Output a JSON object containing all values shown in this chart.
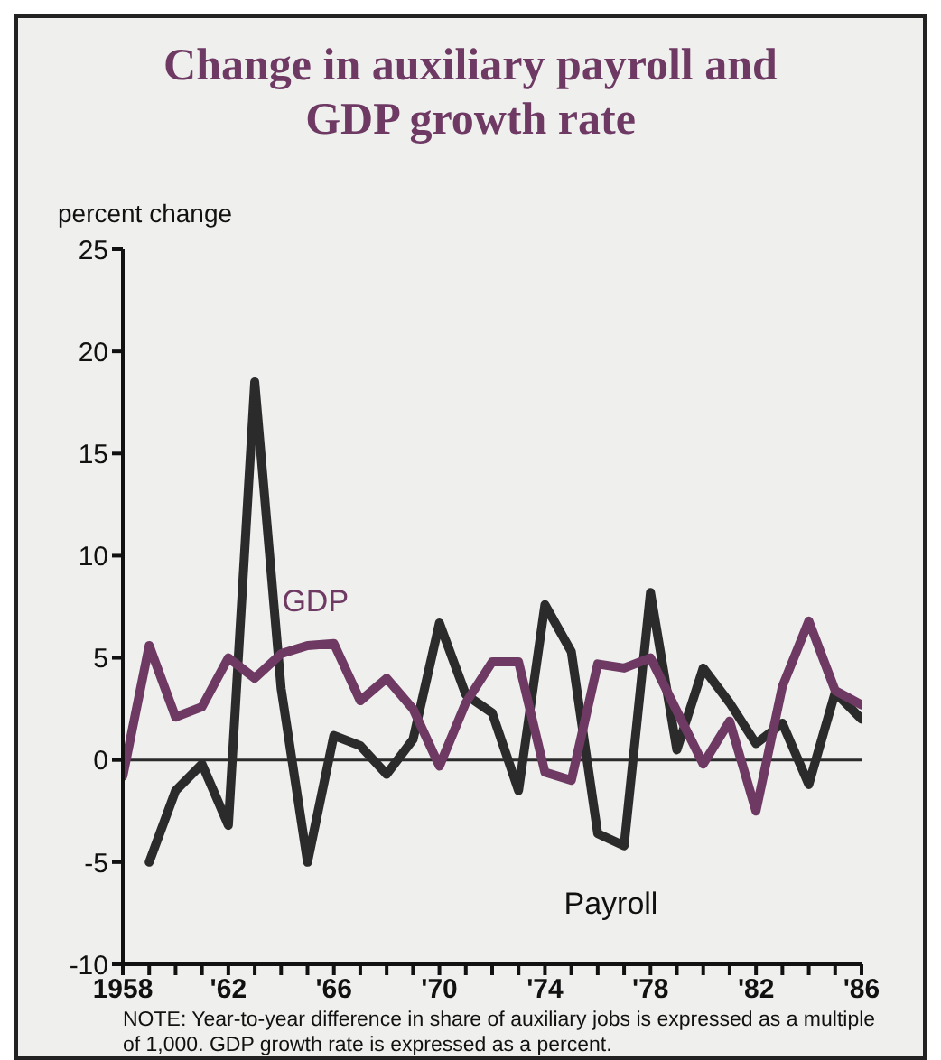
{
  "chart_data": {
    "type": "line",
    "title": "Change in auxiliary payroll and GDP growth rate",
    "ylabel": "percent change",
    "x": [
      1958,
      1959,
      1960,
      1961,
      1962,
      1963,
      1964,
      1965,
      1966,
      1967,
      1968,
      1969,
      1970,
      1971,
      1972,
      1973,
      1974,
      1975,
      1976,
      1977,
      1978,
      1979,
      1980,
      1981,
      1982,
      1983,
      1984,
      1985,
      1986
    ],
    "series": [
      {
        "name": "Payroll",
        "color": "#2b2b2b",
        "values": [
          null,
          -5,
          -1.5,
          -0.2,
          -3.2,
          18.5,
          3.5,
          -5,
          1.2,
          0.7,
          -0.7,
          1,
          6.7,
          3.2,
          2.3,
          -1.5,
          7.6,
          5.3,
          -3.6,
          -4.2,
          8.2,
          0.5,
          4.5,
          2.8,
          0.8,
          1.8,
          -1.2,
          3.3,
          2
        ]
      },
      {
        "name": "GDP",
        "color": "#6e3a64",
        "values": [
          -0.8,
          5.6,
          2.1,
          2.6,
          5,
          4,
          5.2,
          5.6,
          5.7,
          2.9,
          4,
          2.5,
          -0.3,
          2.8,
          4.8,
          4.8,
          -0.6,
          -1,
          4.7,
          4.5,
          5,
          2.4,
          -0.2,
          1.9,
          -2.5,
          3.6,
          6.8,
          3.4,
          2.7
        ]
      }
    ],
    "xlim": [
      1958,
      1986
    ],
    "xticks": [
      1958,
      {
        "value": 1959,
        "label": null
      },
      {
        "value": 1960,
        "label": null
      },
      {
        "value": 1961,
        "label": null
      },
      {
        "value": 1962,
        "label": "'62"
      },
      {
        "value": 1963,
        "label": null
      },
      {
        "value": 1964,
        "label": null
      },
      {
        "value": 1965,
        "label": null
      },
      {
        "value": 1966,
        "label": "'66"
      },
      {
        "value": 1967,
        "label": null
      },
      {
        "value": 1968,
        "label": null
      },
      {
        "value": 1969,
        "label": null
      },
      {
        "value": 1970,
        "label": "'70"
      },
      {
        "value": 1971,
        "label": null
      },
      {
        "value": 1972,
        "label": null
      },
      {
        "value": 1973,
        "label": null
      },
      {
        "value": 1974,
        "label": "'74"
      },
      {
        "value": 1975,
        "label": null
      },
      {
        "value": 1976,
        "label": null
      },
      {
        "value": 1977,
        "label": null
      },
      {
        "value": 1978,
        "label": "'78"
      },
      {
        "value": 1979,
        "label": null
      },
      {
        "value": 1980,
        "label": null
      },
      {
        "value": 1981,
        "label": null
      },
      {
        "value": 1982,
        "label": "'82"
      },
      {
        "value": 1983,
        "label": null
      },
      {
        "value": 1984,
        "label": null
      },
      {
        "value": 1985,
        "label": null
      },
      {
        "value": 1986,
        "label": "'86"
      }
    ],
    "ylim": [
      -10,
      25
    ],
    "yticks": [
      -10,
      -5,
      0,
      5,
      10,
      15,
      20,
      25
    ],
    "ref_lines": [
      {
        "axis": "y",
        "value": 0,
        "color": "#2b2b2b"
      }
    ],
    "grid": false,
    "legend": false,
    "marker": "none",
    "line_style": "solid",
    "annotations": [
      "NOTE: Year-to-year difference in share of auxiliary jobs is expressed as a multiple of 1,000.  GDP growth rate is expressed as a percent."
    ]
  }
}
